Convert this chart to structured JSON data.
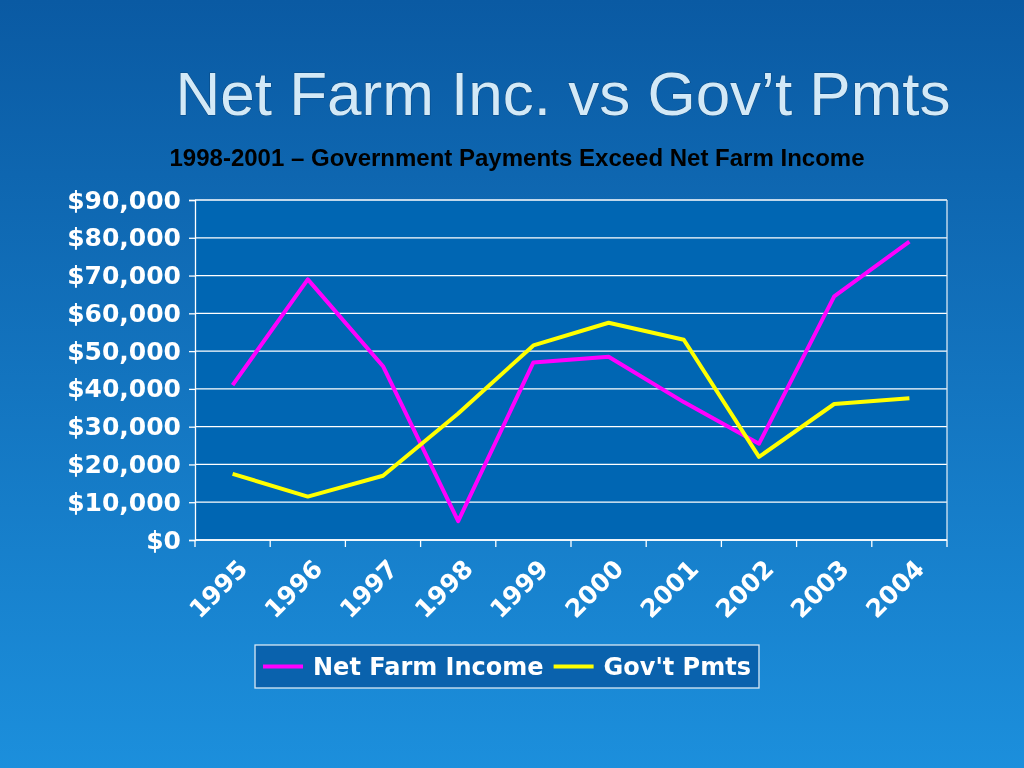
{
  "chart_data": {
    "type": "line",
    "title": "Net Farm Inc. vs Gov’t Pmts",
    "subtitle": "1998-2001 – Government Payments Exceed Net Farm Income",
    "categories": [
      "1995",
      "1996",
      "1997",
      "1998",
      "1999",
      "2000",
      "2001",
      "2002",
      "2003",
      "2004"
    ],
    "series": [
      {
        "name": "Net Farm Income",
        "color": "#ff00ff",
        "values": [
          41000,
          69000,
          46000,
          5000,
          47000,
          48500,
          36500,
          25500,
          64500,
          79000
        ]
      },
      {
        "name": "Gov't Pmts",
        "color": "#ffff00",
        "values": [
          17500,
          11500,
          17000,
          33500,
          51500,
          57500,
          53000,
          22000,
          36000,
          37500
        ]
      }
    ],
    "ylim": [
      0,
      90000
    ],
    "yticks": [
      {
        "value": 0,
        "label": "$0"
      },
      {
        "value": 10000,
        "label": "$10,000"
      },
      {
        "value": 20000,
        "label": "$20,000"
      },
      {
        "value": 30000,
        "label": "$30,000"
      },
      {
        "value": 40000,
        "label": "$40,000"
      },
      {
        "value": 50000,
        "label": "$50,000"
      },
      {
        "value": 60000,
        "label": "$60,000"
      },
      {
        "value": 70000,
        "label": "$70,000"
      },
      {
        "value": 80000,
        "label": "$80,000"
      },
      {
        "value": 90000,
        "label": "$90,000"
      }
    ],
    "grid": "y",
    "legend": "bottom"
  }
}
